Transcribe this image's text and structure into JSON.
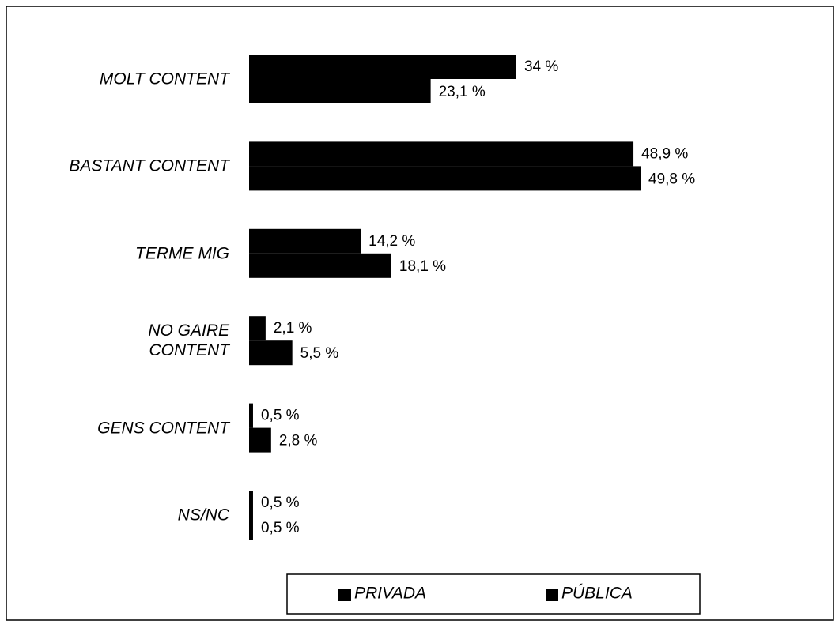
{
  "chart_data": {
    "type": "bar",
    "orientation": "horizontal",
    "categories": [
      "MOLT CONTENT",
      "BASTANT CONTENT",
      "TERME MIG",
      "NO GAIRE\nCONTENT",
      "GENS CONTENT",
      "NS/NC"
    ],
    "series": [
      {
        "name": "PRIVADA",
        "color": "#000000",
        "values": [
          34,
          48.9,
          14.2,
          2.1,
          0.5,
          0.5
        ],
        "value_labels": [
          "34 %",
          "48,9 %",
          "14,2 %",
          "2,1 %",
          "0,5 %",
          "0,5 %"
        ]
      },
      {
        "name": "PÚBLICA",
        "color": "#000000",
        "values": [
          23.1,
          49.8,
          18.1,
          5.5,
          2.8,
          0.5
        ],
        "value_labels": [
          "23,1 %",
          "49,8 %",
          "18,1 %",
          "5,5 %",
          "2,8 %",
          "0,5 %"
        ]
      }
    ],
    "legend": "bottom"
  }
}
